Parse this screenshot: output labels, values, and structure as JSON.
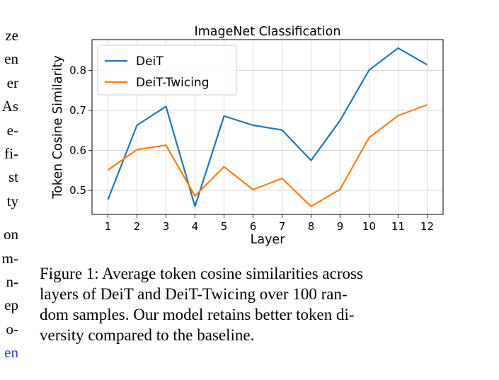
{
  "left_column_fragments": [
    "ze",
    "en",
    "er",
    "As",
    "e-",
    "fi-",
    "st",
    "ty",
    "on",
    "m-",
    "n-",
    "ep",
    "o-",
    "en"
  ],
  "chart_data": {
    "type": "line",
    "title": "ImageNet Classification",
    "xlabel": "Layer",
    "ylabel": "Token Cosine Similarity",
    "x": [
      1,
      2,
      3,
      4,
      5,
      6,
      7,
      8,
      9,
      10,
      11,
      12
    ],
    "xticks": [
      "1",
      "2",
      "3",
      "4",
      "5",
      "6",
      "7",
      "8",
      "9",
      "10",
      "11",
      "12"
    ],
    "yticks": [
      "0.5",
      "0.6",
      "0.7",
      "0.8"
    ],
    "xlim": [
      0.45,
      12.55
    ],
    "ylim": [
      0.44,
      0.877
    ],
    "grid": true,
    "legend_position": "top-left",
    "series": [
      {
        "name": "DeiT",
        "color": "#1f77b4",
        "values": [
          0.477,
          0.663,
          0.71,
          0.46,
          0.686,
          0.663,
          0.651,
          0.575,
          0.675,
          0.801,
          0.856,
          0.814
        ]
      },
      {
        "name": "DeiT-Twicing",
        "color": "#ff7f0e",
        "values": [
          0.551,
          0.602,
          0.613,
          0.486,
          0.559,
          0.502,
          0.53,
          0.46,
          0.503,
          0.632,
          0.687,
          0.714
        ]
      }
    ]
  },
  "caption": {
    "lines": [
      "Figure 1: Average token cosine similarities across",
      "layers of DeiT and DeiT-Twicing over 100 ran-",
      "dom samples. Our model retains better token di-",
      "versity compared to the baseline."
    ]
  }
}
